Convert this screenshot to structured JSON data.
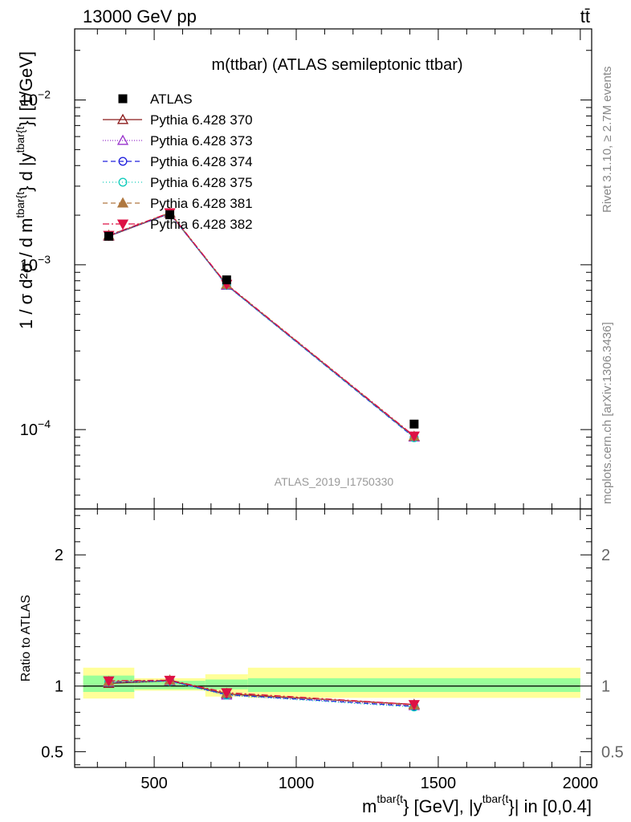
{
  "header": {
    "left": "13000 GeV pp",
    "right": "tt̄"
  },
  "side_labels": {
    "rivet": "Rivet 3.1.10, ≥ 2.7M events",
    "mcplots": "mcplots.cern.ch [arXiv:1306.3436]"
  },
  "chart_data": [
    {
      "type": "line",
      "title": "m(ttbar) (ATLAS semileptonic ttbar)",
      "analysis_label": "ATLAS_2019_I1750330",
      "ylabel_main": "1 / σ d²σ / d m",
      "ylabel_sup1": "tbar{t",
      "ylabel_mid": "} d |y",
      "ylabel_sup2": "tbar{t",
      "ylabel_tail": "}| [1/GeV]",
      "yscale": "log",
      "ylim": [
        3.3e-05,
        0.027
      ],
      "xlim": [
        220,
        2040
      ],
      "y_ticks": [
        {
          "value": 0.01,
          "base": "10",
          "exp": "−2"
        },
        {
          "value": 0.001,
          "base": "10",
          "exp": "−3"
        },
        {
          "value": 0.0001,
          "base": "10",
          "exp": "−4"
        }
      ],
      "x": [
        340,
        555,
        755,
        1415
      ],
      "data": {
        "name": "ATLAS",
        "values": [
          0.00149,
          0.00201,
          0.00081,
          0.000108
        ]
      },
      "series": [
        {
          "name": "Pythia 6.428 370",
          "color": "#8b1a1a",
          "dash": "",
          "marker": "triangle-open",
          "values": [
            0.00149,
            0.00205,
            0.000755,
            9.05e-05
          ]
        },
        {
          "name": "Pythia 6.428 373",
          "color": "#9933cc",
          "dash": "1,2",
          "marker": "triangle-open",
          "values": [
            0.0015,
            0.00206,
            0.00075,
            9e-05
          ]
        },
        {
          "name": "Pythia 6.428 374",
          "color": "#2222dd",
          "dash": "6,4",
          "marker": "circle-open",
          "values": [
            0.0015,
            0.00205,
            0.000752,
            8.95e-05
          ]
        },
        {
          "name": "Pythia 6.428 375",
          "color": "#11ccbb",
          "dash": "1,3",
          "marker": "circle-open",
          "values": [
            0.0015,
            0.00205,
            0.00075,
            8.92e-05
          ]
        },
        {
          "name": "Pythia 6.428 381",
          "color": "#b07840",
          "dash": "6,4",
          "marker": "triangle-filled",
          "values": [
            0.00151,
            0.00207,
            0.00076,
            9.1e-05
          ]
        },
        {
          "name": "Pythia 6.428 382",
          "color": "#dd1144",
          "dash": "8,3,2,3",
          "marker": "triangle-down-filled",
          "values": [
            0.00151,
            0.00207,
            0.000762,
            9.15e-05
          ]
        }
      ]
    },
    {
      "type": "line",
      "ylabel": "Ratio to ATLAS",
      "xlabel_main": "m",
      "xlabel_sup1": "tbar{t",
      "xlabel_mid": "} [GeV], |y",
      "xlabel_sup2": "tbar{t",
      "xlabel_tail": "}| in [0,0.4]",
      "ylim": [
        0.38,
        2.35
      ],
      "xlim": [
        220,
        2040
      ],
      "x_ticks": [
        500,
        1000,
        1500,
        2000
      ],
      "y_ticks": [
        0.5,
        1,
        2
      ],
      "y_tick_labels": [
        "0.5",
        "1",
        "2"
      ],
      "bins": [
        {
          "lo": 250,
          "hi": 430,
          "stat_lo": 0.955,
          "stat_hi": 1.08,
          "total_lo": 0.905,
          "total_hi": 1.14
        },
        {
          "lo": 430,
          "hi": 680,
          "stat_lo": 0.975,
          "stat_hi": 1.04,
          "total_lo": 0.965,
          "total_hi": 1.06
        },
        {
          "lo": 680,
          "hi": 830,
          "stat_lo": 0.975,
          "stat_hi": 1.05,
          "total_lo": 0.92,
          "total_hi": 1.09
        },
        {
          "lo": 830,
          "hi": 2000,
          "stat_lo": 0.955,
          "stat_hi": 1.06,
          "total_lo": 0.91,
          "total_hi": 1.14
        }
      ],
      "x": [
        340,
        555,
        755,
        1415
      ],
      "series": [
        {
          "name": "Pythia 6.428 370",
          "values": [
            1.02,
            1.04,
            0.94,
            0.86
          ]
        },
        {
          "name": "Pythia 6.428 373",
          "values": [
            1.03,
            1.04,
            0.93,
            0.85
          ]
        },
        {
          "name": "Pythia 6.428 374",
          "values": [
            1.03,
            1.04,
            0.935,
            0.845
          ]
        },
        {
          "name": "Pythia 6.428 375",
          "values": [
            1.03,
            1.035,
            0.93,
            0.84
          ]
        },
        {
          "name": "Pythia 6.428 381",
          "values": [
            1.035,
            1.045,
            0.945,
            0.855
          ]
        },
        {
          "name": "Pythia 6.428 382",
          "values": [
            1.04,
            1.045,
            0.95,
            0.86
          ]
        }
      ]
    }
  ]
}
